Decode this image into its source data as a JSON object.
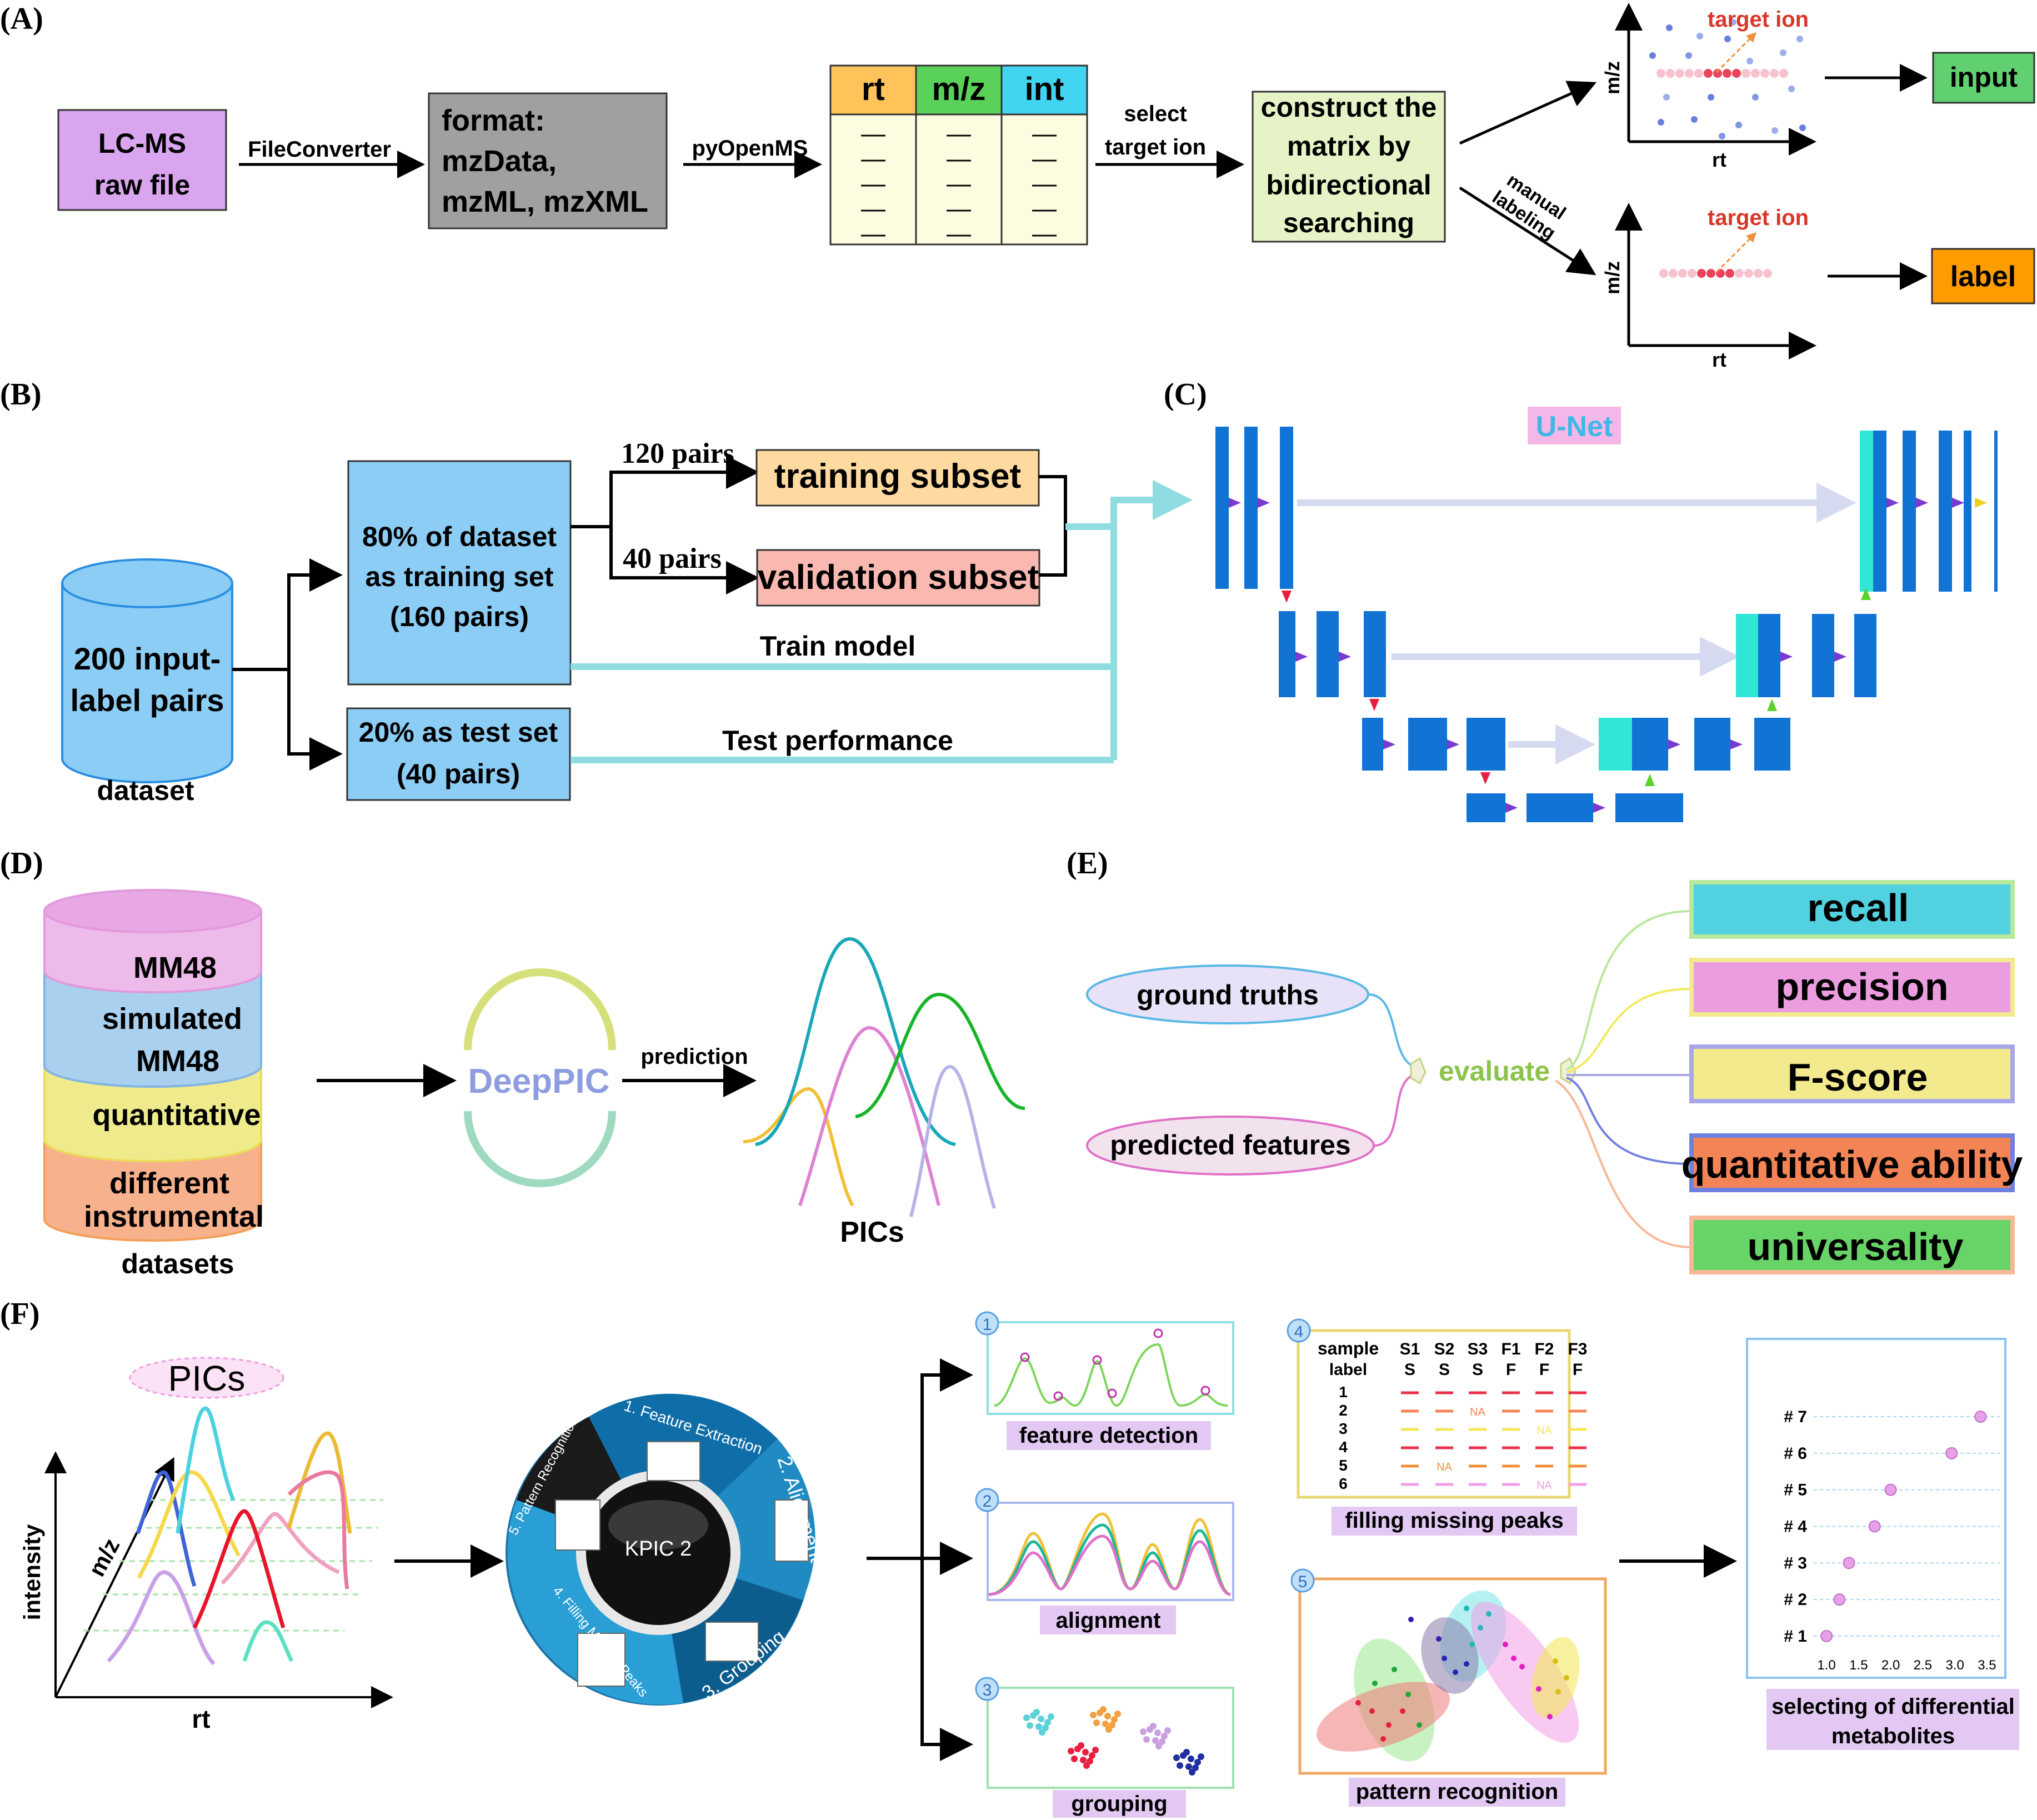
{
  "panels": {
    "A": "(A)",
    "B": "(B)",
    "C": "(C)",
    "D": "(D)",
    "E": "(E)",
    "F": "(F)"
  },
  "panel_a": {
    "raw_file": [
      "LC-MS",
      "raw file"
    ],
    "file_converter": "FileConverter",
    "formats": [
      "format:",
      "mzData,",
      "mzML, mzXML"
    ],
    "pyopenms": "pyOpenMS",
    "table_headers": [
      "rt",
      "m/z",
      "int"
    ],
    "table_dash": "—",
    "select_target": [
      "select",
      "target ion"
    ],
    "construct": [
      "construct the",
      "matrix by",
      "bidirectional",
      "searching"
    ],
    "manual_labeling": [
      "manual",
      "labeling"
    ],
    "target_ion": "target ion",
    "axis_y": "m/z",
    "axis_x": "rt",
    "input": "input",
    "label": "label"
  },
  "panel_b": {
    "dataset_text": [
      "200 input-",
      "label pairs"
    ],
    "dataset_label": "dataset",
    "training_set": [
      "80% of dataset",
      "as training set",
      "(160 pairs)"
    ],
    "test_set": [
      "20% as test set",
      "(40 pairs)"
    ],
    "pairs_120": "120 pairs",
    "pairs_40": "40 pairs",
    "training_subset": "training subset",
    "validation_subset": "validation subset",
    "train_model": "Train model",
    "test_performance": "Test performance"
  },
  "panel_c": {
    "title": "U-Net"
  },
  "panel_d": {
    "layers": [
      "MM48",
      "simulated",
      "MM48",
      "quantitative",
      "different",
      "instrumental"
    ],
    "datasets_label": "datasets",
    "deeppic": "DeepPIC",
    "prediction": "prediction",
    "pics": "PICs"
  },
  "panel_e": {
    "ground_truths": "ground truths",
    "predicted_features": "predicted features",
    "evaluate": "evaluate",
    "metrics": [
      "recall",
      "precision",
      "F-score",
      "quantitative ability",
      "universality"
    ]
  },
  "panel_f": {
    "pics_title": "PICs",
    "axis_intensity": "intensity",
    "axis_mz": "m/z",
    "axis_rt": "rt",
    "kpic": "KPIC 2",
    "wheel": [
      "1. Feature Extraction",
      "2. Alignment",
      "3. Grouping",
      "4. Filling Missing Peaks",
      "5. Pattern Recognition"
    ],
    "steps": [
      "feature detection",
      "alignment",
      "grouping",
      "filling missing peaks",
      "pattern recognition"
    ],
    "step_numbers": [
      "1",
      "2",
      "3",
      "4",
      "5"
    ],
    "table_header": [
      "sample",
      "S1",
      "S2",
      "S3",
      "F1",
      "F2",
      "F3"
    ],
    "table_header2": [
      "label",
      "S",
      "S",
      "S",
      "F",
      "F",
      "F"
    ],
    "table_rows": [
      "1",
      "2",
      "3",
      "4",
      "5",
      "6"
    ],
    "na": "NA",
    "selecting": [
      "selecting of differential",
      "metabolites"
    ],
    "dot_labels": [
      "# 7",
      "# 6",
      "# 5",
      "# 4",
      "# 3",
      "# 2",
      "# 1"
    ],
    "ticks": [
      "1.0",
      "1.5",
      "2.0",
      "2.5",
      "3.0",
      "3.5"
    ]
  },
  "colors": {
    "raw_file": "#d9a5ee",
    "format_box": "#a0a0a0",
    "table_bg": "#fefce0",
    "rt": "#ffc35a",
    "mz": "#5ad25a",
    "int": "#41d4f1",
    "construct": "#e6f3c6",
    "input": "#60d070",
    "label": "#ff9d00",
    "blue_box": "#8ccdf5",
    "training": "#fed9a0",
    "validation": "#f9b9b0",
    "teal_line": "#8fdde0",
    "unet": "#1173d4",
    "unet_cyan": "#30e6d7",
    "recall": "#52d2e0",
    "precision": "#ec9de0",
    "fscore": "#f2ea8c",
    "quant": "#f28456",
    "universality": "#68d468"
  },
  "chart_data": {
    "type": "scatter",
    "title": "",
    "xlabel": "",
    "ylabel": "",
    "categories": [
      "# 1",
      "# 2",
      "# 3",
      "# 4",
      "# 5",
      "# 6",
      "# 7"
    ],
    "values": [
      1.0,
      1.2,
      1.35,
      1.75,
      2.0,
      2.95,
      3.4
    ],
    "xlim": [
      0.8,
      3.7
    ]
  }
}
